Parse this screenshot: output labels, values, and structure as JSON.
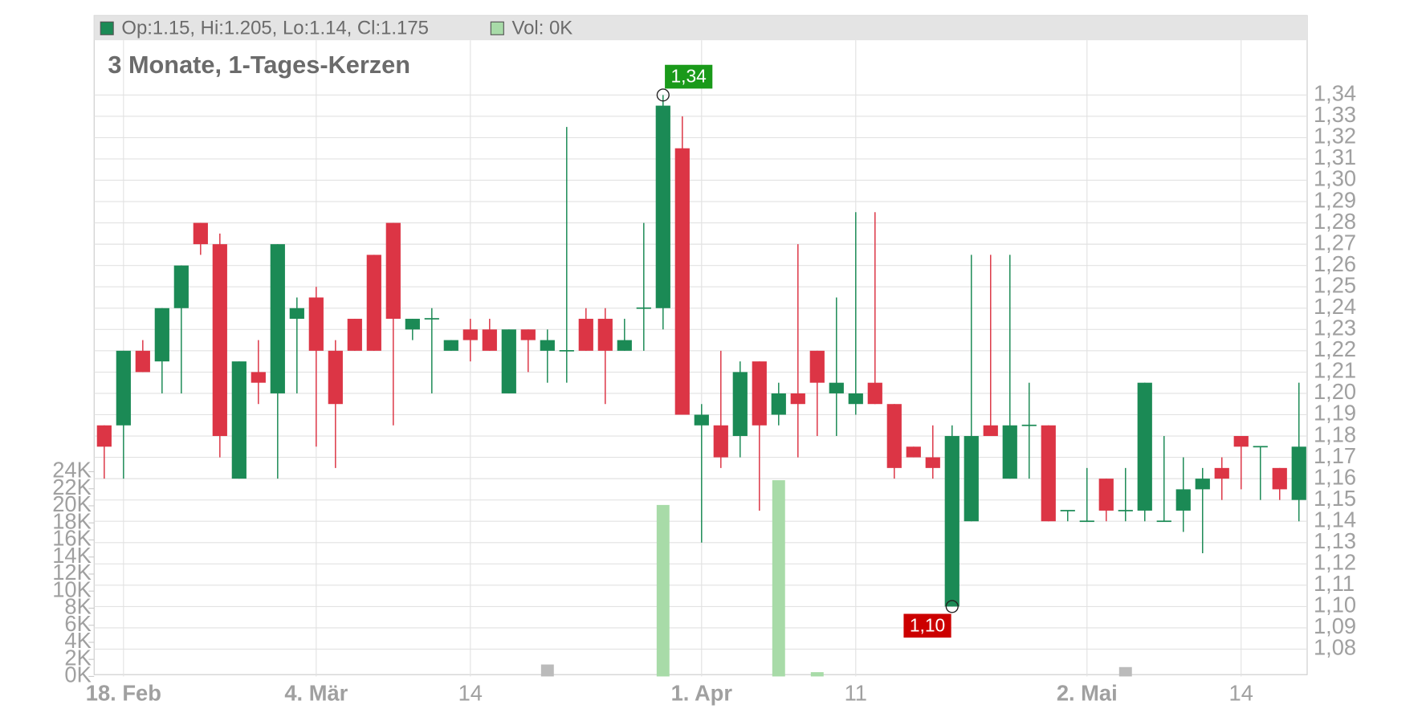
{
  "chart_data": {
    "type": "candlestick",
    "title": "3 Monate, 1-Tages-Kerzen",
    "legend": [
      {
        "name": "Op:1.15, Hi:1.205, Lo:1.14, Cl:1.175",
        "color": "#1b8a55"
      },
      {
        "name": "Vol: 0K",
        "color": "#a8dba8"
      }
    ],
    "categories": [
      null,
      "18. Feb",
      null,
      null,
      null,
      null,
      null,
      null,
      null,
      null,
      null,
      "4. Mär",
      null,
      null,
      null,
      null,
      null,
      null,
      null,
      "14",
      null,
      null,
      null,
      null,
      null,
      null,
      null,
      null,
      null,
      null,
      null,
      "1. Apr",
      null,
      null,
      null,
      null,
      null,
      null,
      null,
      "11",
      null,
      null,
      null,
      null,
      null,
      null,
      null,
      null,
      null,
      null,
      null,
      "2. Mai",
      null,
      null,
      null,
      null,
      null,
      null,
      null,
      "14",
      null,
      null,
      null
    ],
    "up_color": "#1b8a55",
    "down_color": "#dc3545",
    "open": [
      1.185,
      1.185,
      1.22,
      1.215,
      1.24,
      1.28,
      1.27,
      1.16,
      1.21,
      1.2,
      1.235,
      1.245,
      1.22,
      1.235,
      1.265,
      1.28,
      1.23,
      1.235,
      1.22,
      1.23,
      1.23,
      1.2,
      1.23,
      1.22,
      1.22,
      1.235,
      1.235,
      1.22,
      1.24,
      1.24,
      1.315,
      1.185,
      1.185,
      1.18,
      1.215,
      1.19,
      1.2,
      1.22,
      1.2,
      1.195,
      1.205,
      1.195,
      1.175,
      1.17,
      1.1,
      1.14,
      1.185,
      1.16,
      1.185,
      1.185,
      1.145,
      1.14,
      1.16,
      1.145,
      1.145,
      1.14,
      1.145,
      1.155,
      1.165,
      1.18,
      1.175,
      1.165,
      1.15
    ],
    "high": [
      1.185,
      1.22,
      1.225,
      1.24,
      1.26,
      1.28,
      1.275,
      1.215,
      1.225,
      1.27,
      1.245,
      1.25,
      1.225,
      1.235,
      1.265,
      1.28,
      1.235,
      1.24,
      1.225,
      1.235,
      1.235,
      1.23,
      1.23,
      1.23,
      1.325,
      1.24,
      1.24,
      1.235,
      1.28,
      1.34,
      1.33,
      1.195,
      1.22,
      1.215,
      1.215,
      1.205,
      1.27,
      1.22,
      1.245,
      1.285,
      1.285,
      1.195,
      1.175,
      1.185,
      1.185,
      1.265,
      1.265,
      1.265,
      1.205,
      1.185,
      1.145,
      1.165,
      1.16,
      1.165,
      1.205,
      1.18,
      1.17,
      1.165,
      1.17,
      1.18,
      1.175,
      1.165,
      1.205
    ],
    "low": [
      1.16,
      1.16,
      1.21,
      1.2,
      1.2,
      1.265,
      1.17,
      1.16,
      1.195,
      1.16,
      1.2,
      1.175,
      1.165,
      1.22,
      1.22,
      1.185,
      1.225,
      1.2,
      1.22,
      1.215,
      1.22,
      1.2,
      1.21,
      1.205,
      1.205,
      1.22,
      1.195,
      1.22,
      1.22,
      1.23,
      1.19,
      1.13,
      1.165,
      1.17,
      1.145,
      1.185,
      1.17,
      1.18,
      1.18,
      1.19,
      1.195,
      1.16,
      1.17,
      1.16,
      1.1,
      1.14,
      1.18,
      1.16,
      1.16,
      1.14,
      1.14,
      1.14,
      1.14,
      1.14,
      1.14,
      1.14,
      1.135,
      1.125,
      1.15,
      1.155,
      1.15,
      1.15,
      1.14
    ],
    "close": [
      1.175,
      1.22,
      1.21,
      1.24,
      1.26,
      1.27,
      1.18,
      1.215,
      1.205,
      1.27,
      1.24,
      1.22,
      1.195,
      1.22,
      1.22,
      1.235,
      1.235,
      1.235,
      1.225,
      1.225,
      1.22,
      1.23,
      1.225,
      1.225,
      1.22,
      1.22,
      1.22,
      1.225,
      1.24,
      1.335,
      1.19,
      1.19,
      1.17,
      1.21,
      1.185,
      1.2,
      1.195,
      1.205,
      1.205,
      1.2,
      1.195,
      1.165,
      1.17,
      1.165,
      1.18,
      1.18,
      1.18,
      1.185,
      1.185,
      1.14,
      1.145,
      1.14,
      1.145,
      1.145,
      1.205,
      1.14,
      1.155,
      1.16,
      1.16,
      1.175,
      1.175,
      1.155,
      1.175
    ],
    "volume": [
      0,
      0,
      0,
      0,
      0,
      0,
      0,
      0,
      0,
      0,
      0,
      0,
      0,
      0,
      0,
      0,
      0,
      0,
      0,
      0,
      0,
      0,
      0,
      1400,
      0,
      0,
      0,
      0,
      0,
      20100,
      0,
      0,
      0,
      0,
      0,
      23000,
      0,
      500,
      0,
      0,
      0,
      0,
      0,
      0,
      0,
      0,
      0,
      0,
      0,
      0,
      0,
      0,
      0,
      1100,
      0,
      0,
      0,
      0,
      0,
      0,
      0,
      0,
      0
    ],
    "volume_colors": [
      "#a8dba8",
      "#a8dba8",
      "#a8dba8",
      "#a8dba8",
      "#a8dba8",
      "#a8dba8",
      "#a8dba8",
      "#a8dba8",
      "#a8dba8",
      "#a8dba8",
      "#a8dba8",
      "#a8dba8",
      "#a8dba8",
      "#a8dba8",
      "#a8dba8",
      "#a8dba8",
      "#a8dba8",
      "#a8dba8",
      "#a8dba8",
      "#a8dba8",
      "#a8dba8",
      "#a8dba8",
      "#a8dba8",
      "#bbbbbb",
      "#a8dba8",
      "#a8dba8",
      "#a8dba8",
      "#a8dba8",
      "#a8dba8",
      "#a8dba8",
      "#a8dba8",
      "#a8dba8",
      "#a8dba8",
      "#a8dba8",
      "#a8dba8",
      "#a8dba8",
      "#a8dba8",
      "#a8dba8",
      "#a8dba8",
      "#a8dba8",
      "#a8dba8",
      "#a8dba8",
      "#a8dba8",
      "#a8dba8",
      "#a8dba8",
      "#a8dba8",
      "#a8dba8",
      "#a8dba8",
      "#a8dba8",
      "#a8dba8",
      "#a8dba8",
      "#a8dba8",
      "#a8dba8",
      "#bbbbbb",
      "#a8dba8",
      "#a8dba8",
      "#a8dba8",
      "#a8dba8",
      "#a8dba8",
      "#a8dba8",
      "#a8dba8",
      "#a8dba8",
      "#a8dba8"
    ],
    "ylim": [
      1.0672,
      1.3657
    ],
    "yticks": [
      {
        "value": 1.08,
        "label": "1,08"
      },
      {
        "value": 1.09,
        "label": "1,09"
      },
      {
        "value": 1.1,
        "label": "1,10"
      },
      {
        "value": 1.11,
        "label": "1,11"
      },
      {
        "value": 1.12,
        "label": "1,12"
      },
      {
        "value": 1.13,
        "label": "1,13"
      },
      {
        "value": 1.14,
        "label": "1,14"
      },
      {
        "value": 1.15,
        "label": "1,15"
      },
      {
        "value": 1.16,
        "label": "1,16"
      },
      {
        "value": 1.17,
        "label": "1,17"
      },
      {
        "value": 1.18,
        "label": "1,18"
      },
      {
        "value": 1.19,
        "label": "1,19"
      },
      {
        "value": 1.2,
        "label": "1,20"
      },
      {
        "value": 1.21,
        "label": "1,21"
      },
      {
        "value": 1.22,
        "label": "1,22"
      },
      {
        "value": 1.23,
        "label": "1,23"
      },
      {
        "value": 1.24,
        "label": "1,24"
      },
      {
        "value": 1.25,
        "label": "1,25"
      },
      {
        "value": 1.26,
        "label": "1,26"
      },
      {
        "value": 1.27,
        "label": "1,27"
      },
      {
        "value": 1.28,
        "label": "1,28"
      },
      {
        "value": 1.29,
        "label": "1,29"
      },
      {
        "value": 1.3,
        "label": "1,30"
      },
      {
        "value": 1.31,
        "label": "1,31"
      },
      {
        "value": 1.32,
        "label": "1,32"
      },
      {
        "value": 1.33,
        "label": "1,33"
      },
      {
        "value": 1.34,
        "label": "1,34"
      }
    ],
    "y2lim": [
      0,
      74570
    ],
    "y2ticks": [
      {
        "value": 0,
        "label": "0K"
      },
      {
        "value": 2000,
        "label": "2K"
      },
      {
        "value": 4000,
        "label": "4K"
      },
      {
        "value": 6000,
        "label": "6K"
      },
      {
        "value": 8000,
        "label": "8K"
      },
      {
        "value": 10000,
        "label": "10K"
      },
      {
        "value": 12000,
        "label": "12K"
      },
      {
        "value": 14000,
        "label": "14K"
      },
      {
        "value": 16000,
        "label": "16K"
      },
      {
        "value": 18000,
        "label": "18K"
      },
      {
        "value": 20000,
        "label": "20K"
      },
      {
        "value": 22000,
        "label": "22K"
      },
      {
        "value": 24000,
        "label": "24K"
      }
    ],
    "grid": true,
    "annotations": [
      {
        "label": "1,34",
        "value": 1.34,
        "index": 29,
        "color": "#1a9a1a",
        "position": "above"
      },
      {
        "label": "1,10",
        "value": 1.1,
        "index": 44,
        "color": "#cc0000",
        "position": "below"
      }
    ]
  }
}
